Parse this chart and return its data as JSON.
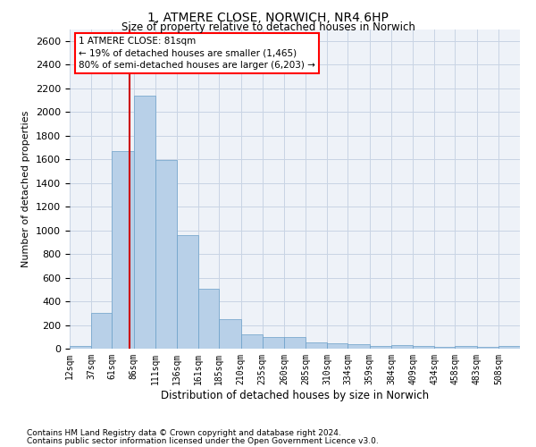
{
  "title_line1": "1, ATMERE CLOSE, NORWICH, NR4 6HP",
  "title_line2": "Size of property relative to detached houses in Norwich",
  "xlabel": "Distribution of detached houses by size in Norwich",
  "ylabel": "Number of detached properties",
  "footnote1": "Contains HM Land Registry data © Crown copyright and database right 2024.",
  "footnote2": "Contains public sector information licensed under the Open Government Licence v3.0.",
  "annotation_title": "1 ATMERE CLOSE: 81sqm",
  "annotation_line1": "← 19% of detached houses are smaller (1,465)",
  "annotation_line2": "80% of semi-detached houses are larger (6,203) →",
  "bar_color": "#b8d0e8",
  "bar_edge_color": "#6a9fc8",
  "red_line_color": "#cc0000",
  "grid_color": "#c8d4e4",
  "background_color": "#eef2f8",
  "categories": [
    "12sqm",
    "37sqm",
    "61sqm",
    "86sqm",
    "111sqm",
    "136sqm",
    "161sqm",
    "185sqm",
    "210sqm",
    "235sqm",
    "260sqm",
    "285sqm",
    "310sqm",
    "334sqm",
    "359sqm",
    "384sqm",
    "409sqm",
    "434sqm",
    "458sqm",
    "483sqm",
    "508sqm"
  ],
  "values": [
    25,
    300,
    1670,
    2140,
    1590,
    960,
    505,
    250,
    120,
    100,
    95,
    50,
    42,
    35,
    20,
    28,
    20,
    15,
    20,
    15,
    25
  ],
  "bin_edges": [
    12,
    37,
    61,
    86,
    111,
    136,
    161,
    185,
    210,
    235,
    260,
    285,
    310,
    334,
    359,
    384,
    409,
    434,
    458,
    483,
    508,
    533
  ],
  "red_line_x": 81,
  "ylim": [
    0,
    2700
  ],
  "yticks": [
    0,
    200,
    400,
    600,
    800,
    1000,
    1200,
    1400,
    1600,
    1800,
    2000,
    2200,
    2400,
    2600
  ]
}
